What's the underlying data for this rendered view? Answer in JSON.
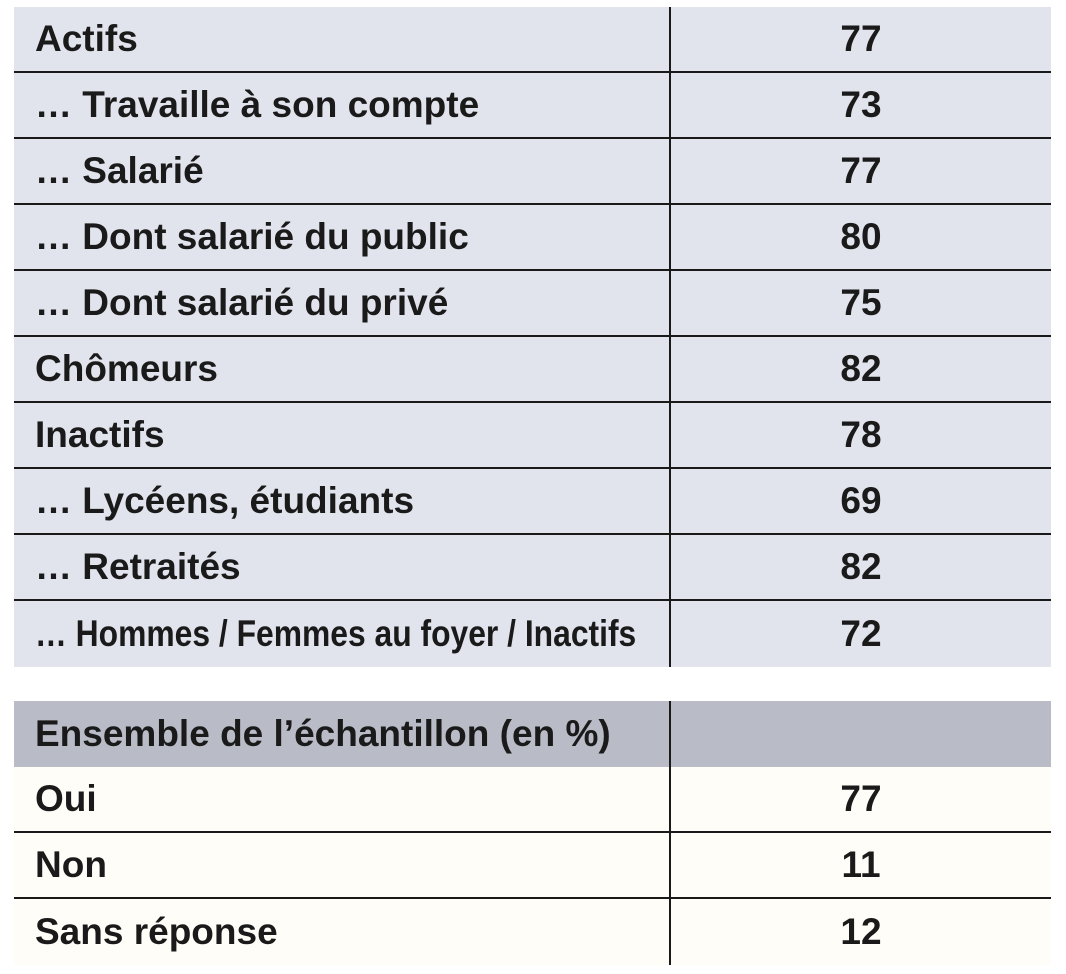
{
  "document": {
    "kind": "survey-results-table",
    "language": "fr"
  },
  "colors": {
    "segment_row_bg": "#e2e4ed",
    "summary_header_bg": "#b9bcc6",
    "summary_row_bg": "#fffdf8",
    "border": "#191919",
    "text": "#1a1a1a",
    "page_bg": "#ffffff"
  },
  "segments_table": {
    "rows": [
      {
        "label": "Actifs",
        "value": "77"
      },
      {
        "label": "… Travaille à son compte",
        "value": "73"
      },
      {
        "label": "… Salarié",
        "value": "77"
      },
      {
        "label": "… Dont salarié du public",
        "value": "80"
      },
      {
        "label": "… Dont salarié du privé",
        "value": "75"
      },
      {
        "label": "Chômeurs",
        "value": "82"
      },
      {
        "label": "Inactifs",
        "value": "78"
      },
      {
        "label": "… Lycéens, étudiants",
        "value": "69"
      },
      {
        "label": "… Retraités",
        "value": "82"
      },
      {
        "label": "… Hommes / Femmes au foyer / Inactifs",
        "value": "72"
      }
    ]
  },
  "summary_table": {
    "header": {
      "label": "Ensemble de l’échantillon (en %)",
      "value": ""
    },
    "rows": [
      {
        "label": "Oui",
        "value": "77"
      },
      {
        "label": "Non",
        "value": "11"
      },
      {
        "label": "Sans réponse",
        "value": "12"
      }
    ]
  }
}
